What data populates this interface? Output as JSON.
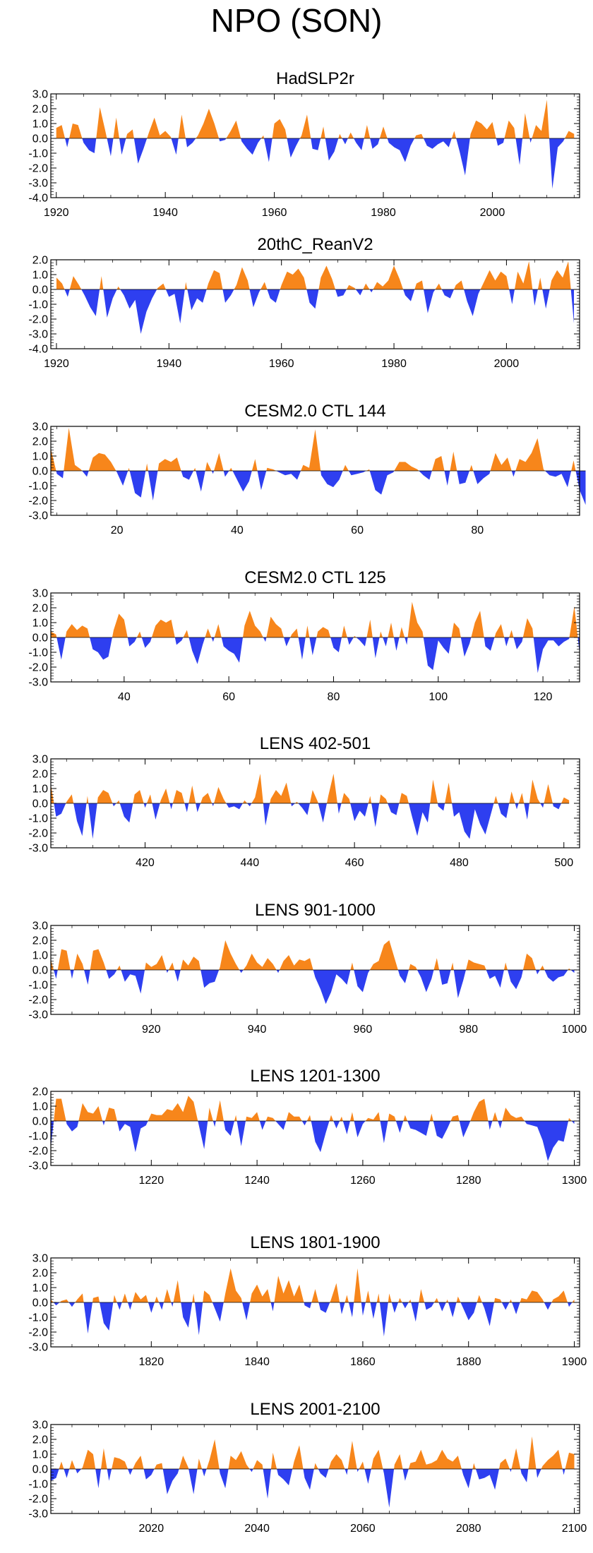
{
  "figure_title": "NPO (SON)",
  "colors": {
    "positive": "#f7861b",
    "negative": "#2e3ff0",
    "axis": "#000000",
    "zero_line": "#000000"
  },
  "chart_data": [
    {
      "type": "area",
      "title": "HadSLP2r",
      "x_start": 1920,
      "x_end": 2015,
      "xlim": [
        1919,
        2016
      ],
      "x_ticks": [
        1920,
        1940,
        1960,
        1980,
        2000
      ],
      "ylim": [
        -4.0,
        3.0
      ],
      "y_ticks": [
        3.0,
        2.0,
        1.0,
        0.0,
        -1.0,
        -2.0,
        -3.0,
        -4.0
      ],
      "y_tick_labels": [
        "3.0",
        "2.0",
        "1.0",
        "0.0",
        "-1.0",
        "-2.0",
        "-3.0",
        "-4.0"
      ],
      "values": [
        0.7,
        0.9,
        -0.6,
        1.0,
        0.9,
        -0.3,
        -0.8,
        -1.0,
        2.1,
        0.5,
        -1.2,
        1.4,
        -1.1,
        0.3,
        0.6,
        -1.7,
        -0.7,
        0.4,
        1.4,
        0.2,
        0.5,
        0.1,
        -1.1,
        1.6,
        -0.6,
        -0.3,
        0.2,
        1.0,
        2.0,
        1.0,
        -0.2,
        -0.1,
        0.5,
        1.2,
        -0.2,
        -0.7,
        -1.1,
        -0.3,
        0.2,
        -1.6,
        1.0,
        1.3,
        0.6,
        -1.3,
        -0.5,
        0.2,
        1.6,
        -0.7,
        -0.8,
        0.8,
        -1.5,
        -0.9,
        0.3,
        -0.4,
        0.4,
        -0.3,
        -0.8,
        0.9,
        -0.7,
        -0.4,
        0.8,
        -0.3,
        -0.6,
        -0.8,
        -1.6,
        -0.5,
        0.2,
        0.3,
        -0.5,
        -0.7,
        -0.4,
        -0.2,
        -0.6,
        0.5,
        -0.9,
        -2.5,
        0.3,
        1.2,
        1.0,
        0.6,
        1.1,
        -0.5,
        -0.3,
        1.2,
        0.7,
        -1.8,
        1.7,
        -0.3,
        0.9,
        0.5,
        2.6,
        -3.4,
        -0.6,
        -0.2,
        0.5,
        0.3
      ]
    },
    {
      "type": "area",
      "title": "20thC_ReanV2",
      "x_start": 1920,
      "x_end": 2012,
      "xlim": [
        1919,
        2013
      ],
      "x_ticks": [
        1920,
        1940,
        1960,
        1980,
        2000
      ],
      "ylim": [
        -4.0,
        2.0
      ],
      "y_ticks": [
        2.0,
        1.0,
        0.0,
        -1.0,
        -2.0,
        -3.0,
        -4.0
      ],
      "y_tick_labels": [
        "2.0",
        "1.0",
        "0.0",
        "-1.0",
        "-2.0",
        "-3.0",
        "-4.0"
      ],
      "values": [
        0.8,
        0.4,
        -0.5,
        0.9,
        0.3,
        -0.4,
        -1.2,
        -1.8,
        0.9,
        -1.9,
        -0.6,
        0.2,
        -0.4,
        -1.3,
        -0.7,
        -3.0,
        -1.5,
        -0.6,
        0.1,
        0.4,
        -0.5,
        -0.3,
        -2.3,
        0.5,
        -1.4,
        -0.6,
        -0.9,
        0.4,
        1.3,
        1.1,
        -0.9,
        -0.4,
        0.3,
        1.5,
        0.6,
        -1.2,
        -0.2,
        0.5,
        -0.6,
        -0.9,
        0.3,
        1.2,
        1.0,
        1.4,
        0.8,
        -0.9,
        -1.3,
        0.8,
        1.6,
        0.7,
        -0.5,
        -0.4,
        0.3,
        0.1,
        -0.4,
        0.4,
        -0.2,
        0.5,
        0.2,
        0.6,
        1.6,
        0.7,
        -0.4,
        -0.8,
        0.4,
        0.6,
        -1.6,
        -0.2,
        0.4,
        -0.4,
        -0.6,
        0.3,
        0.6,
        -0.8,
        -1.8,
        -0.3,
        0.5,
        1.3,
        0.6,
        1.2,
        0.9,
        -1.0,
        1.2,
        0.4,
        1.9,
        -1.1,
        0.8,
        -1.3,
        0.6,
        1.3,
        0.8,
        1.9,
        -2.3
      ]
    },
    {
      "type": "area",
      "title": "CESM2.0 CTL 144",
      "x_start": 9,
      "x_end": 97,
      "xlim": [
        9,
        97
      ],
      "x_ticks": [
        20,
        40,
        60,
        80
      ],
      "ylim": [
        -3.0,
        3.0
      ],
      "y_ticks": [
        3.0,
        2.0,
        1.0,
        0.0,
        -1.0,
        -2.0,
        -3.0
      ],
      "y_tick_labels": [
        "3.0",
        "2.0",
        "1.0",
        "0.0",
        "-1.0",
        "-2.0",
        "-3.0"
      ],
      "values": [
        1.5,
        -0.2,
        -0.5,
        2.9,
        0.4,
        0.1,
        -0.4,
        0.9,
        1.2,
        1.1,
        0.6,
        -0.1,
        -1.0,
        0.2,
        -1.5,
        -1.8,
        0.5,
        -2.0,
        0.5,
        0.8,
        0.6,
        0.9,
        -0.4,
        -0.6,
        0.2,
        -1.4,
        0.6,
        -0.2,
        1.2,
        -0.4,
        0.2,
        -0.6,
        -1.4,
        -0.7,
        0.8,
        -1.3,
        0.2,
        0.1,
        -0.1,
        -0.3,
        -0.2,
        -0.6,
        0.4,
        0.2,
        2.8,
        -0.3,
        -0.9,
        -1.1,
        -0.6,
        0.4,
        -0.3,
        -0.2,
        -0.1,
        0.1,
        -1.3,
        -1.6,
        -0.3,
        -0.1,
        0.6,
        0.6,
        0.3,
        0.1,
        -0.3,
        -0.6,
        0.8,
        1.0,
        -1.0,
        1.3,
        -0.9,
        -0.8,
        0.4,
        -0.9,
        -0.5,
        -0.2,
        1.2,
        0.4,
        0.9,
        -0.4,
        0.8,
        0.6,
        1.2,
        2.2,
        0.1,
        -0.3,
        -0.4,
        -0.2,
        -1.1,
        0.7,
        -1.3,
        -2.3
      ]
    },
    {
      "type": "area",
      "title": "CESM2.0 CTL 125",
      "x_start": 26,
      "x_end": 127,
      "xlim": [
        26,
        127
      ],
      "x_ticks": [
        40,
        60,
        80,
        100,
        120
      ],
      "ylim": [
        -3.0,
        3.0
      ],
      "y_ticks": [
        3.0,
        2.0,
        1.0,
        0.0,
        -1.0,
        -2.0,
        -3.0
      ],
      "y_tick_labels": [
        "3.0",
        "2.0",
        "1.0",
        "0.0",
        "-1.0",
        "-2.0",
        "-3.0"
      ],
      "values": [
        0.4,
        0.2,
        -1.5,
        0.4,
        0.9,
        0.5,
        0.8,
        0.6,
        -0.8,
        -1.0,
        -1.5,
        -1.3,
        0.5,
        1.6,
        1.2,
        -0.6,
        -0.3,
        0.4,
        -0.7,
        -0.3,
        0.8,
        1.2,
        1.0,
        1.2,
        -0.5,
        -0.2,
        0.5,
        -0.9,
        -1.8,
        -0.5,
        0.6,
        -0.3,
        0.9,
        -0.6,
        -0.9,
        -1.1,
        -1.7,
        0.8,
        1.8,
        0.8,
        0.4,
        -0.3,
        1.4,
        0.9,
        0.6,
        -0.6,
        0.2,
        0.6,
        -1.5,
        0.8,
        -1.2,
        0.4,
        0.7,
        0.5,
        -0.7,
        -1.0,
        0.8,
        -0.5,
        0.1,
        -0.2,
        -0.6,
        1.2,
        -1.4,
        0.4,
        -0.6,
        1.0,
        -0.9,
        0.7,
        -0.5,
        2.4,
        1.0,
        0.4,
        -1.9,
        -2.2,
        -0.2,
        -0.7,
        -1.1,
        1.0,
        0.6,
        -1.3,
        -0.4,
        1.0,
        1.8,
        -0.6,
        -0.9,
        0.3,
        0.9,
        -0.6,
        0.5,
        -0.8,
        -0.3,
        1.3,
        0.6,
        -2.4,
        -0.8,
        -0.2,
        -0.2,
        -0.6,
        -0.3,
        -0.1,
        2.1,
        -1.1
      ]
    },
    {
      "type": "area",
      "title": "LENS 402-501",
      "x_start": 402,
      "x_end": 501,
      "xlim": [
        402,
        503
      ],
      "x_ticks": [
        420,
        440,
        460,
        480,
        500
      ],
      "ylim": [
        -3.0,
        3.0
      ],
      "y_ticks": [
        3.0,
        2.0,
        1.0,
        0.0,
        -1.0,
        -2.0,
        -3.0
      ],
      "y_tick_labels": [
        "3.0",
        "2.0",
        "1.0",
        "0.0",
        "-1.0",
        "-2.0",
        "-3.0"
      ],
      "values": [
        1.3,
        -0.9,
        -0.7,
        0.1,
        0.6,
        -1.2,
        -2.2,
        0.5,
        -2.4,
        0.4,
        0.9,
        0.7,
        -0.2,
        0.2,
        -0.9,
        -1.3,
        0.6,
        0.9,
        -0.3,
        0.6,
        -1.1,
        0.2,
        1.0,
        -0.4,
        0.9,
        0.7,
        -0.6,
        1.2,
        -0.6,
        0.4,
        0.7,
        -0.2,
        1.1,
        0.3,
        -0.3,
        -0.2,
        -0.4,
        0.2,
        -0.2,
        0.4,
        2.0,
        -1.5,
        0.3,
        0.9,
        0.5,
        1.4,
        -0.2,
        0.1,
        -0.3,
        -0.8,
        0.9,
        0.1,
        -1.3,
        0.5,
        2.0,
        -0.7,
        0.7,
        0.3,
        -1.2,
        -0.5,
        -0.9,
        0.5,
        -1.6,
        0.6,
        0.3,
        -0.6,
        -0.8,
        0.7,
        0.5,
        -0.9,
        -2.2,
        -0.6,
        -1.3,
        1.6,
        -0.2,
        -0.5,
        1.4,
        -0.9,
        -0.6,
        -1.9,
        -2.4,
        -0.4,
        -1.4,
        -2.1,
        -0.8,
        0.5,
        -0.7,
        -1.0,
        0.8,
        -0.4,
        0.7,
        -1.1,
        1.6,
        0.3,
        -0.3,
        1.3,
        -0.2,
        -0.4,
        0.4,
        0.2
      ]
    },
    {
      "type": "area",
      "title": "LENS 901-1000",
      "x_start": 901,
      "x_end": 1000,
      "xlim": [
        901,
        1001
      ],
      "x_ticks": [
        920,
        940,
        960,
        980,
        1000
      ],
      "ylim": [
        -3.0,
        3.0
      ],
      "y_ticks": [
        3.0,
        2.0,
        1.0,
        0.0,
        -1.0,
        -2.0,
        -3.0
      ],
      "y_tick_labels": [
        "3.0",
        "2.0",
        "1.0",
        "0.0",
        "-1.0",
        "-2.0",
        "-3.0"
      ],
      "values": [
        0.7,
        -0.6,
        1.4,
        1.3,
        -0.6,
        1.1,
        0.4,
        -1.0,
        1.3,
        1.4,
        0.5,
        -0.6,
        -0.3,
        0.3,
        -0.8,
        -0.3,
        -0.4,
        -1.6,
        0.5,
        0.2,
        0.4,
        1.0,
        -0.2,
        0.5,
        -0.8,
        0.7,
        0.3,
        0.9,
        0.6,
        -1.2,
        -0.9,
        -0.8,
        0.2,
        2.0,
        1.1,
        0.4,
        -0.2,
        0.3,
        1.1,
        0.5,
        0.2,
        0.8,
        0.4,
        -0.2,
        0.6,
        1.0,
        0.3,
        0.7,
        0.6,
        0.8,
        -0.5,
        -1.3,
        -2.3,
        -1.5,
        -0.3,
        -0.6,
        -1.0,
        0.5,
        -1.1,
        -1.5,
        -0.2,
        0.4,
        0.6,
        1.7,
        2.0,
        0.8,
        -0.4,
        -0.9,
        0.4,
        0.2,
        -0.5,
        -1.5,
        -0.6,
        0.8,
        -1.0,
        -0.9,
        0.5,
        -1.9,
        -0.7,
        0.7,
        0.5,
        0.4,
        0.3,
        -0.6,
        -0.4,
        -1.2,
        0.5,
        -0.8,
        -1.3,
        -0.5,
        1.1,
        0.8,
        -0.3,
        0.3,
        -0.5,
        -0.8,
        -0.5,
        -0.4,
        0.1,
        -0.2
      ]
    },
    {
      "type": "area",
      "title": "LENS 1201-1300",
      "x_start": 1201,
      "x_end": 1300,
      "xlim": [
        1201,
        1301
      ],
      "x_ticks": [
        1220,
        1240,
        1260,
        1280,
        1300
      ],
      "ylim": [
        -3.0,
        2.0
      ],
      "y_ticks": [
        2.0,
        1.0,
        0.0,
        -1.0,
        -2.0,
        -3.0
      ],
      "y_tick_labels": [
        "2.0",
        "1.0",
        "0.0",
        "-1.0",
        "-2.0",
        "-3.0"
      ],
      "values": [
        -1.8,
        1.5,
        1.5,
        -0.2,
        -0.7,
        -0.4,
        1.2,
        0.6,
        0.5,
        1.0,
        -0.3,
        0.9,
        0.8,
        -0.7,
        -0.2,
        -0.4,
        -2.1,
        -0.5,
        -0.3,
        0.5,
        0.4,
        0.4,
        0.8,
        0.7,
        1.2,
        0.6,
        1.7,
        1.3,
        -0.3,
        -1.9,
        0.9,
        -0.4,
        1.4,
        -0.6,
        -1.0,
        0.4,
        -1.7,
        0.3,
        0.2,
        0.6,
        -0.6,
        0.3,
        0.2,
        -0.2,
        -0.6,
        0.6,
        0.3,
        0.3,
        -0.3,
        0.4,
        -1.4,
        -2.1,
        -0.8,
        0.4,
        -0.5,
        0.3,
        -0.9,
        0.6,
        -1.1,
        -0.2,
        0.2,
        0.1,
        0.6,
        -1.5,
        0.5,
        0.3,
        -0.8,
        0.4,
        -0.5,
        -0.6,
        -0.8,
        -1.0,
        0.5,
        -1.0,
        -1.2,
        -0.5,
        0.3,
        0.4,
        -1.1,
        -0.3,
        0.6,
        1.3,
        1.5,
        -0.6,
        0.6,
        -0.5,
        0.9,
        0.4,
        0.2,
        0.3,
        -0.2,
        -0.3,
        -0.4,
        -1.3,
        -2.7,
        -1.8,
        -1.3,
        -1.4,
        0.2,
        -0.2
      ]
    },
    {
      "type": "area",
      "title": "LENS 1801-1900",
      "x_start": 1801,
      "x_end": 1900,
      "xlim": [
        1801,
        1901
      ],
      "x_ticks": [
        1820,
        1840,
        1860,
        1880,
        1900
      ],
      "ylim": [
        -3.0,
        3.0
      ],
      "y_ticks": [
        3.0,
        2.0,
        1.0,
        0.0,
        -1.0,
        -2.0,
        -3.0
      ],
      "y_tick_labels": [
        "3.0",
        "2.0",
        "1.0",
        "0.0",
        "-1.0",
        "-2.0",
        "-3.0"
      ],
      "values": [
        0.2,
        -0.2,
        0.1,
        0.2,
        -0.3,
        0.2,
        0.6,
        -2.1,
        0.3,
        0.4,
        -1.4,
        -1.9,
        0.5,
        -0.5,
        0.6,
        -0.5,
        0.7,
        0.2,
        0.5,
        -0.7,
        0.4,
        -0.5,
        0.9,
        -0.3,
        1.5,
        -1.0,
        -1.7,
        0.6,
        -2.2,
        0.8,
        0.5,
        -0.4,
        -1.3,
        0.6,
        2.3,
        0.8,
        0.3,
        -1.2,
        0.6,
        1.2,
        0.4,
        0.9,
        -0.6,
        1.8,
        0.6,
        1.5,
        0.4,
        1.2,
        -0.2,
        -0.4,
        0.9,
        -0.5,
        -0.7,
        0.2,
        1.3,
        -0.8,
        0.5,
        -1.0,
        2.3,
        -0.9,
        0.8,
        -1.1,
        0.6,
        -2.3,
        0.6,
        -0.7,
        0.3,
        -0.4,
        0.2,
        -1.3,
        0.9,
        -0.5,
        -0.3,
        0.3,
        -0.6,
        0.2,
        -1.0,
        0.4,
        -0.4,
        -1.2,
        -0.7,
        0.5,
        -0.4,
        -1.6,
        0.3,
        0.2,
        -0.5,
        0.2,
        -0.8,
        0.3,
        0.2,
        0.8,
        0.7,
        0.2,
        -0.5,
        0.2,
        0.4,
        0.8,
        -0.3,
        0.2
      ]
    },
    {
      "type": "area",
      "title": "LENS 2001-2100",
      "x_start": 2001,
      "x_end": 2100,
      "xlim": [
        2001,
        2101
      ],
      "x_ticks": [
        2020,
        2040,
        2060,
        2080,
        2100
      ],
      "ylim": [
        -3.0,
        3.0
      ],
      "y_ticks": [
        3.0,
        2.0,
        1.0,
        0.0,
        -1.0,
        -2.0,
        -3.0
      ],
      "y_tick_labels": [
        "3.0",
        "2.0",
        "1.0",
        "0.0",
        "-1.0",
        "-2.0",
        "-3.0"
      ],
      "values": [
        -0.8,
        -0.6,
        0.5,
        -0.6,
        0.6,
        -0.3,
        0.1,
        1.3,
        1.0,
        -1.3,
        1.4,
        -0.8,
        0.8,
        0.7,
        0.5,
        -0.4,
        0.4,
        0.9,
        -0.7,
        -0.4,
        0.3,
        0.4,
        -1.7,
        -0.8,
        -0.3,
        0.9,
        0.1,
        -1.7,
        0.7,
        -0.5,
        0.6,
        2.0,
        -0.3,
        -1.3,
        0.9,
        0.6,
        1.2,
        0.3,
        -0.2,
        0.6,
        0.3,
        -2.0,
        1.1,
        -0.4,
        -0.7,
        -1.1,
        0.5,
        1.6,
        -0.6,
        -1.4,
        0.4,
        -0.3,
        -0.6,
        0.5,
        1.0,
        0.6,
        -0.4,
        1.9,
        -0.2,
        0.5,
        -1.0,
        0.7,
        1.3,
        -0.3,
        -2.6,
        0.3,
        1.0,
        -0.8,
        0.4,
        0.5,
        1.3,
        0.3,
        0.4,
        0.6,
        1.3,
        0.7,
        0.5,
        0.9,
        -0.4,
        -1.3,
        0.4,
        -0.7,
        -0.6,
        -0.4,
        -1.4,
        0.4,
        0.7,
        -0.2,
        1.4,
        -0.3,
        -0.9,
        2.2,
        -0.6,
        0.2,
        0.6,
        0.9,
        1.3,
        -0.4,
        1.1,
        1.0
      ]
    }
  ]
}
